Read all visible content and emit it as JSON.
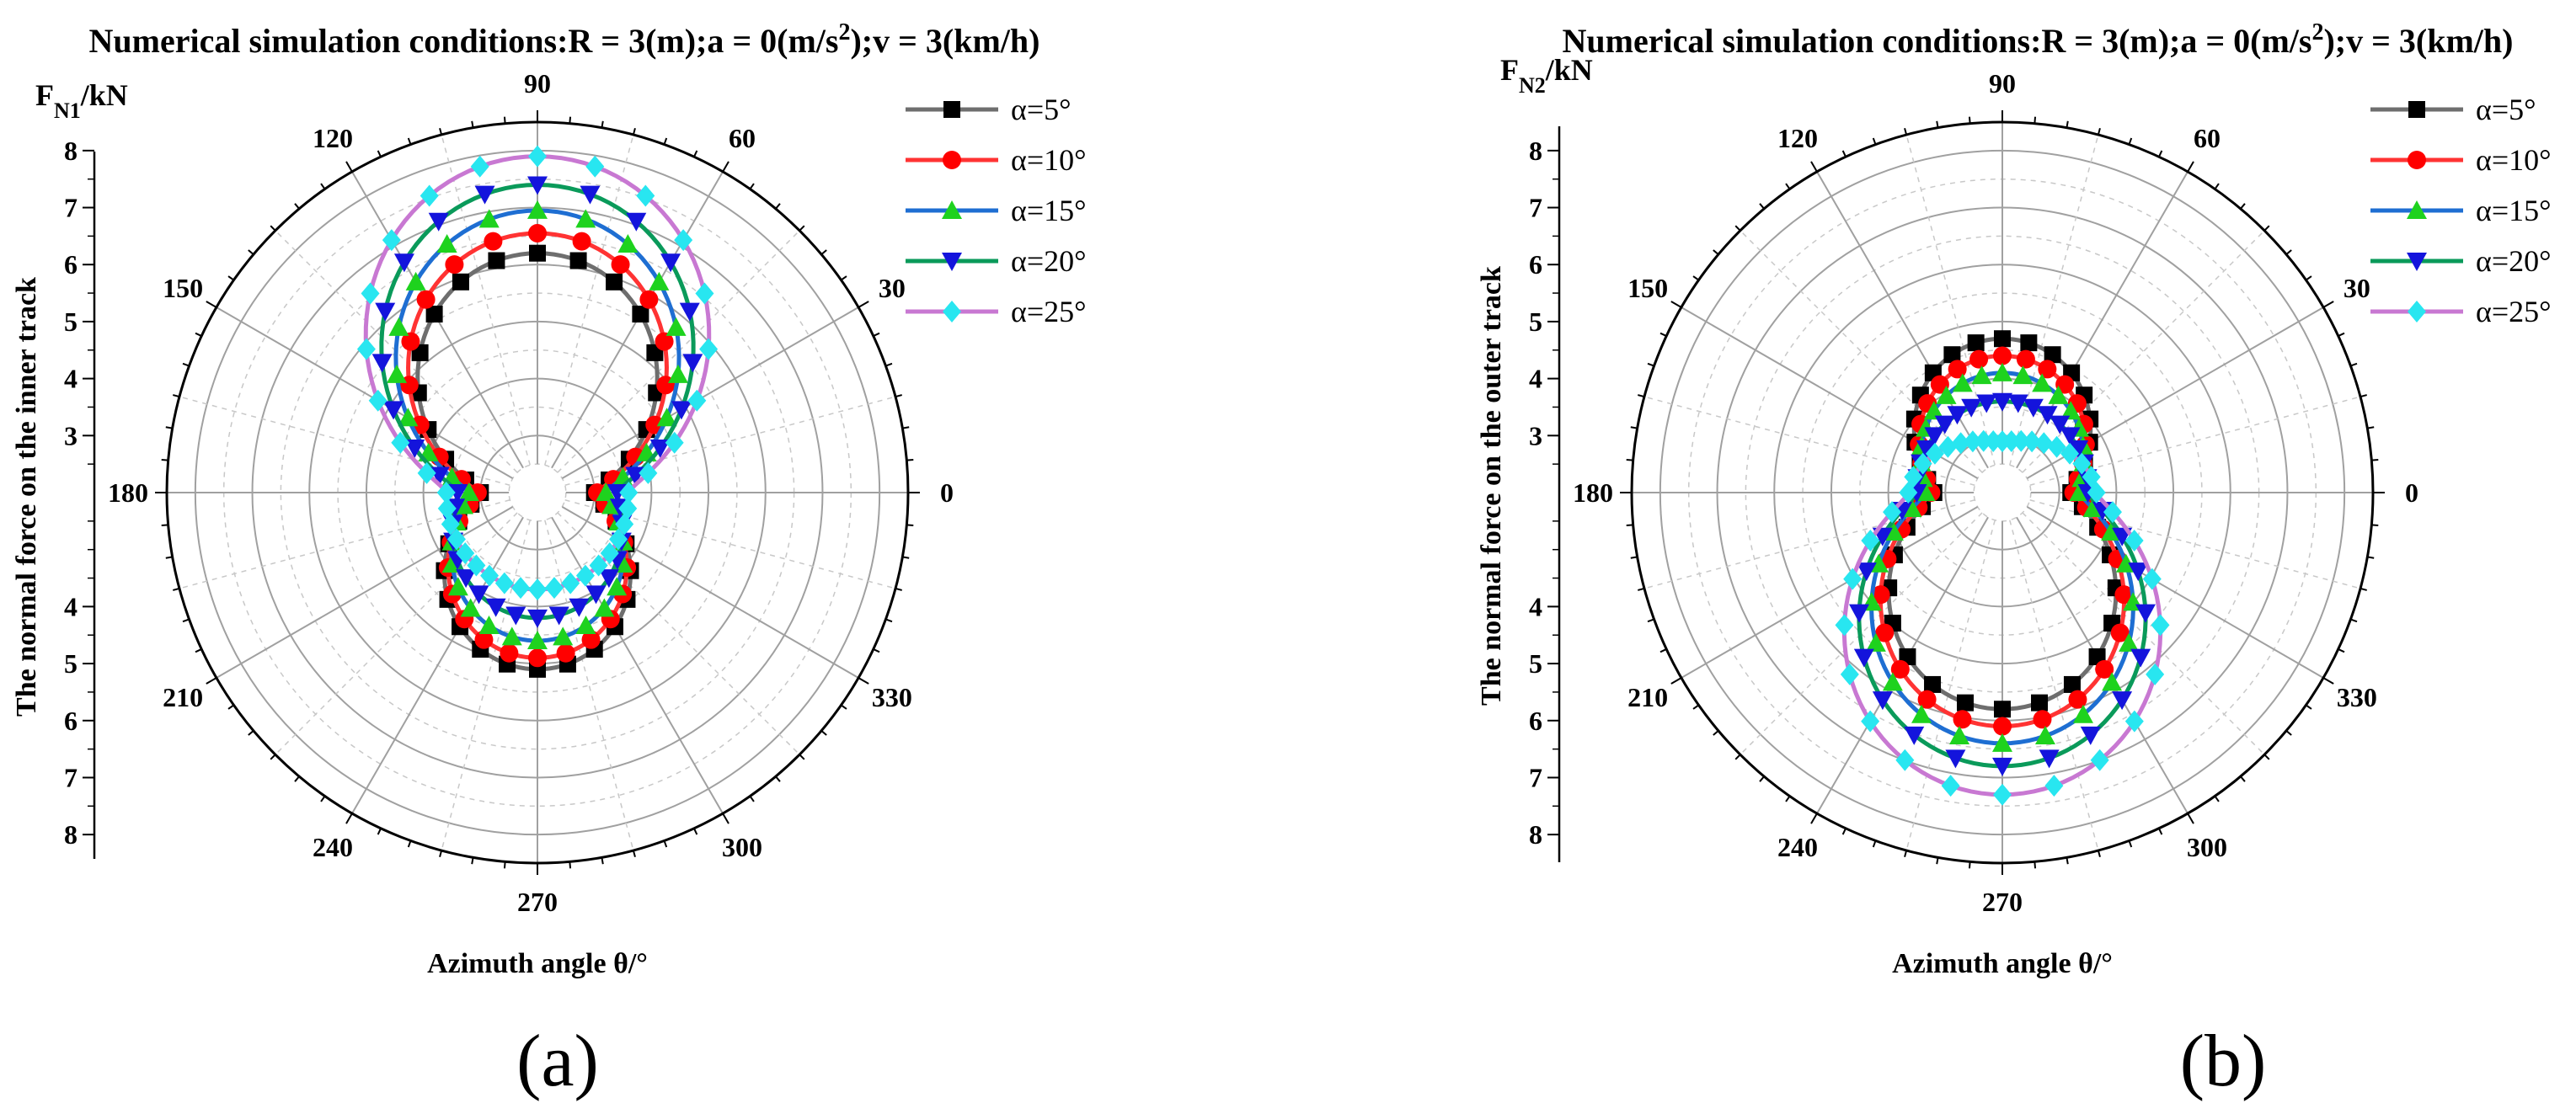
{
  "chart_data": [
    {
      "type": "polar-line",
      "panel_label": "(a)",
      "title": "Numerical simulation conditions:R = 3(m);a = 0(m/s²);v = 3(km/h)",
      "title_parts": {
        "before": "Numerical simulation conditions:R = 3(m);a = 0(m/s",
        "sup": "2",
        "after": ");v = 3(km/h)"
      },
      "radial_axis_title": {
        "main": "F",
        "sub": "N1",
        "unit": "/kN"
      },
      "radial_axis_side_label": "The normal force on the inner track",
      "angular_axis_label": "Azimuth angle θ/°",
      "radial_range": [
        2,
        8.5
      ],
      "radial_tick_labels": [
        "3",
        "4",
        "5",
        "6",
        "7",
        "8"
      ],
      "angular_tick_labels": [
        "0",
        "30",
        "60",
        "90",
        "120",
        "150",
        "180",
        "210",
        "240",
        "270",
        "300",
        "330"
      ],
      "legend_position": "top-right",
      "series": [
        {
          "name": "α=5°",
          "color": "#6e6e6e",
          "marker_color": "#000000",
          "marker": "square",
          "upper": {
            "r90": 6.2,
            "r0": 3.0
          },
          "lower": {
            "r270": 5.1,
            "r0": 3.0
          }
        },
        {
          "name": "α=10°",
          "color": "#ff3333",
          "marker_color": "#ff0000",
          "marker": "circle",
          "upper": {
            "r90": 6.55,
            "r0": 3.05
          },
          "lower": {
            "r270": 4.9,
            "r0": 3.05
          }
        },
        {
          "name": "α=15°",
          "color": "#1e6ed2",
          "marker_color": "#1ed21e",
          "marker": "triangle-up",
          "upper": {
            "r90": 6.95,
            "r0": 3.2
          },
          "lower": {
            "r270": 4.6,
            "r0": 3.2
          }
        },
        {
          "name": "α=20°",
          "color": "#0a9a5a",
          "marker_color": "#1414dc",
          "marker": "triangle-down",
          "upper": {
            "r90": 7.4,
            "r0": 3.4
          },
          "lower": {
            "r270": 4.2,
            "r0": 3.4
          }
        },
        {
          "name": "α=25°",
          "color": "#c878d2",
          "marker_color": "#28e6f0",
          "marker": "diamond",
          "upper": {
            "r90": 7.9,
            "r0": 3.6
          },
          "lower": {
            "r270": 3.7,
            "r0": 3.6
          }
        }
      ]
    },
    {
      "type": "polar-line",
      "panel_label": "(b)",
      "title": "Numerical simulation conditions:R = 3(m);a = 0(m/s²);v = 3(km/h)",
      "title_parts": {
        "before": "Numerical simulation conditions:R = 3(m);a = 0(m/s",
        "sup": "2",
        "after": ");v = 3(km/h)"
      },
      "radial_axis_title": {
        "main": "F",
        "sub": "N2",
        "unit": "/kN"
      },
      "radial_axis_side_label": "The normal force on the outer track",
      "angular_axis_label": "Azimuth angle θ/°",
      "radial_range": [
        2,
        8.5
      ],
      "radial_tick_labels": [
        "8",
        "7",
        "6",
        "5",
        "4",
        "3",
        "4",
        "5",
        "6",
        "7",
        "8"
      ],
      "angular_tick_labels": [
        "0",
        "30",
        "60",
        "90",
        "120",
        "150",
        "180",
        "210",
        "240",
        "270",
        "300",
        "330"
      ],
      "legend_position": "top-right",
      "series": [
        {
          "name": "α=5°",
          "color": "#6e6e6e",
          "marker_color": "#000000",
          "marker": "square",
          "upper": {
            "r90": 4.7,
            "r0": 3.2
          },
          "lower": {
            "r270": 5.8,
            "r0": 3.2
          }
        },
        {
          "name": "α=10°",
          "color": "#ff3333",
          "marker_color": "#ff0000",
          "marker": "circle",
          "upper": {
            "r90": 4.4,
            "r0": 3.25
          },
          "lower": {
            "r270": 6.1,
            "r0": 3.25
          }
        },
        {
          "name": "α=15°",
          "color": "#1e6ed2",
          "marker_color": "#1ed21e",
          "marker": "triangle-up",
          "upper": {
            "r90": 4.1,
            "r0": 3.35
          },
          "lower": {
            "r270": 6.4,
            "r0": 3.35
          }
        },
        {
          "name": "α=20°",
          "color": "#0a9a5a",
          "marker_color": "#1414dc",
          "marker": "triangle-down",
          "upper": {
            "r90": 3.6,
            "r0": 3.5
          },
          "lower": {
            "r270": 6.8,
            "r0": 3.5
          }
        },
        {
          "name": "α=25°",
          "color": "#c878d2",
          "marker_color": "#28e6f0",
          "marker": "diamond",
          "upper": {
            "r90": 2.9,
            "r0": 3.65
          },
          "lower": {
            "r270": 7.3,
            "r0": 3.65
          }
        }
      ]
    }
  ]
}
